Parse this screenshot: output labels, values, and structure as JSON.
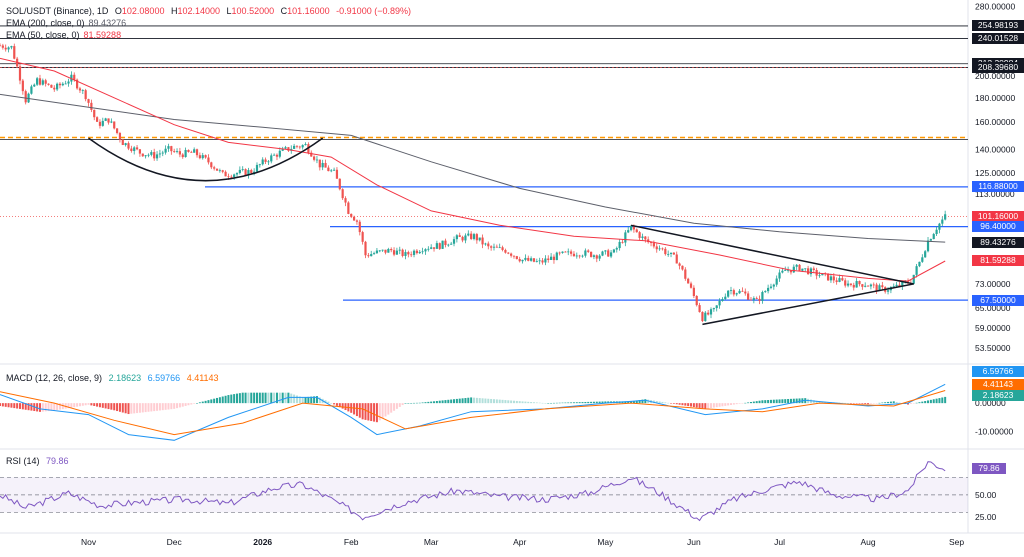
{
  "header": {
    "symbol": "SOL/USDT (Binance), 1D",
    "open_label": "O",
    "open": "102.08000",
    "high_label": "H",
    "high": "102.14000",
    "low_label": "L",
    "low": "100.52000",
    "close_label": "C",
    "close": "101.16000",
    "change": "-0.91000 (−0.89%)",
    "ema200_label": "EMA (200, close, 0)",
    "ema200_value": "89.43276",
    "ema50_label": "EMA (50, close, 0)",
    "ema50_value": "81.59288"
  },
  "macd_header": {
    "label": "MACD (12, 26, close, 9)",
    "v1": "2.18623",
    "v2": "6.59766",
    "v3": "4.41143"
  },
  "rsi_header": {
    "label": "RSI (14)",
    "value": "79.86"
  },
  "colors": {
    "up": "#26a69a",
    "down": "#ef5350",
    "ema200": "#5d606b",
    "ema50": "#f23645",
    "level": "#2962ff",
    "orange": "#ff9800",
    "macd": "#2196f3",
    "signal": "#ff6d00",
    "rsi": "#7e57c2"
  },
  "price_axis": {
    "ticks": [
      "280.00000",
      "240.00000",
      "200.00000",
      "180.00000",
      "160.00000",
      "140.00000",
      "125.00000",
      "113.00000",
      "73.00000",
      "65.00000",
      "59.00000",
      "53.50000"
    ]
  },
  "macd_axis": {
    "ticks": [
      "0.00000",
      "-10.00000"
    ]
  },
  "rsi_axis": {
    "ticks": [
      "50.00",
      "25.00"
    ]
  },
  "time_axis": {
    "labels": [
      "Nov",
      "Dec",
      "2026",
      "Feb",
      "Mar",
      "Apr",
      "May",
      "Jun",
      "Jul",
      "Aug",
      "Sep"
    ]
  },
  "price_tags": [
    {
      "value": 254.98193,
      "text": "254.98193",
      "bg": "#131722"
    },
    {
      "value": 240.01528,
      "text": "240.01528",
      "bg": "#131722"
    },
    {
      "value": 212.30984,
      "text": "212.30984",
      "bg": "#131722"
    },
    {
      "value": 208.3968,
      "text": "208.39680",
      "bg": "#131722"
    },
    {
      "value": 116.88,
      "text": "116.88000",
      "bg": "#2962ff"
    },
    {
      "value": 101.16,
      "text": "101.16000",
      "bg": "#f23645"
    },
    {
      "value": 96.4,
      "text": "96.40000",
      "bg": "#2962ff"
    },
    {
      "value": 89.43276,
      "text": "89.43276",
      "bg": "#131722"
    },
    {
      "value": 81.59288,
      "text": "81.59288",
      "bg": "#f23645"
    },
    {
      "value": 67.5,
      "text": "67.50000",
      "bg": "#2962ff"
    }
  ],
  "macd_tags": [
    {
      "text": "6.59766",
      "bg": "#2196f3"
    },
    {
      "text": "4.41143",
      "bg": "#ff6d00"
    },
    {
      "text": "2.18623",
      "bg": "#26a69a"
    }
  ],
  "rsi_tag": {
    "text": "79.86",
    "bg": "#7e57c2"
  },
  "chart_data": {
    "type": "line",
    "title": "SOL/USDT (Binance), 1D",
    "x_start": "2025-10-01",
    "x_end": "2026-09-05",
    "close_series": [
      [
        "2025-10-01",
        232
      ],
      [
        "2025-10-05",
        230
      ],
      [
        "2025-10-10",
        178
      ],
      [
        "2025-10-14",
        196
      ],
      [
        "2025-10-20",
        188
      ],
      [
        "2025-10-26",
        198
      ],
      [
        "2025-10-31",
        182
      ],
      [
        "2025-11-04",
        158
      ],
      [
        "2025-11-08",
        162
      ],
      [
        "2025-11-13",
        145
      ],
      [
        "2025-11-19",
        138
      ],
      [
        "2025-11-24",
        136
      ],
      [
        "2025-11-29",
        140
      ],
      [
        "2025-12-03",
        137
      ],
      [
        "2025-12-08",
        138
      ],
      [
        "2025-12-13",
        132
      ],
      [
        "2025-12-18",
        124
      ],
      [
        "2025-12-23",
        125
      ],
      [
        "2025-12-28",
        126
      ],
      [
        "2026-01-03",
        134
      ],
      [
        "2026-01-08",
        139
      ],
      [
        "2026-01-12",
        142
      ],
      [
        "2026-01-16",
        143
      ],
      [
        "2026-01-21",
        130
      ],
      [
        "2026-01-26",
        125
      ],
      [
        "2026-01-31",
        104
      ],
      [
        "2026-02-03",
        99
      ],
      [
        "2026-02-06",
        84
      ],
      [
        "2026-02-10",
        85
      ],
      [
        "2026-02-15",
        86
      ],
      [
        "2026-02-20",
        84
      ],
      [
        "2026-02-26",
        87
      ],
      [
        "2026-03-04",
        88
      ],
      [
        "2026-03-10",
        91
      ],
      [
        "2026-03-16",
        92
      ],
      [
        "2026-03-21",
        87
      ],
      [
        "2026-03-27",
        86
      ],
      [
        "2026-04-02",
        82
      ],
      [
        "2026-04-08",
        81
      ],
      [
        "2026-04-15",
        84
      ],
      [
        "2026-04-22",
        85
      ],
      [
        "2026-04-28",
        84
      ],
      [
        "2026-05-04",
        85
      ],
      [
        "2026-05-10",
        96
      ],
      [
        "2026-05-15",
        90
      ],
      [
        "2026-05-20",
        87
      ],
      [
        "2026-05-26",
        82
      ],
      [
        "2026-05-31",
        71
      ],
      [
        "2026-06-04",
        62
      ],
      [
        "2026-06-08",
        64
      ],
      [
        "2026-06-13",
        71
      ],
      [
        "2026-06-18",
        70
      ],
      [
        "2026-06-23",
        67
      ],
      [
        "2026-06-28",
        73
      ],
      [
        "2026-07-03",
        78
      ],
      [
        "2026-07-08",
        79
      ],
      [
        "2026-07-13",
        77
      ],
      [
        "2026-07-19",
        75
      ],
      [
        "2026-07-25",
        73
      ],
      [
        "2026-07-31",
        73
      ],
      [
        "2026-08-06",
        71
      ],
      [
        "2026-08-11",
        72
      ],
      [
        "2026-08-16",
        74
      ],
      [
        "2026-08-19",
        81
      ],
      [
        "2026-08-22",
        90
      ],
      [
        "2026-08-25",
        96
      ],
      [
        "2026-08-28",
        101.16
      ]
    ],
    "ema50": [
      [
        "2025-10-01",
        218
      ],
      [
        "2025-10-20",
        205
      ],
      [
        "2025-11-10",
        180
      ],
      [
        "2025-12-01",
        158
      ],
      [
        "2025-12-20",
        145
      ],
      [
        "2026-01-10",
        140
      ],
      [
        "2026-01-25",
        135
      ],
      [
        "2026-02-10",
        118
      ],
      [
        "2026-03-01",
        104
      ],
      [
        "2026-03-25",
        97
      ],
      [
        "2026-04-20",
        92
      ],
      [
        "2026-05-15",
        90
      ],
      [
        "2026-06-10",
        84
      ],
      [
        "2026-07-05",
        78
      ],
      [
        "2026-08-01",
        75
      ],
      [
        "2026-08-15",
        74
      ],
      [
        "2026-08-28",
        81.59288
      ]
    ],
    "ema200": [
      [
        "2025-10-01",
        183
      ],
      [
        "2025-11-01",
        172
      ],
      [
        "2025-12-01",
        162
      ],
      [
        "2026-01-01",
        156
      ],
      [
        "2026-02-01",
        150
      ],
      [
        "2026-03-01",
        132
      ],
      [
        "2026-04-01",
        116
      ],
      [
        "2026-05-01",
        106
      ],
      [
        "2026-06-01",
        98
      ],
      [
        "2026-07-01",
        94
      ],
      [
        "2026-08-01",
        91
      ],
      [
        "2026-08-28",
        89.43276
      ]
    ],
    "levels": [
      254.98193,
      240.01528,
      212.30984,
      208.3968,
      148.5,
      116.88,
      96.4,
      67.5
    ],
    "macd": [
      [
        "2025-10-01",
        3
      ],
      [
        "2025-10-15",
        -2
      ],
      [
        "2025-11-01",
        -4
      ],
      [
        "2025-11-15",
        -11
      ],
      [
        "2025-12-01",
        -13
      ],
      [
        "2025-12-20",
        -5
      ],
      [
        "2026-01-10",
        2
      ],
      [
        "2026-01-20",
        2
      ],
      [
        "2026-02-01",
        -5
      ],
      [
        "2026-02-10",
        -11
      ],
      [
        "2026-02-25",
        -8
      ],
      [
        "2026-03-15",
        -3
      ],
      [
        "2026-04-10",
        -2
      ],
      [
        "2026-05-01",
        0
      ],
      [
        "2026-05-15",
        1
      ],
      [
        "2026-06-05",
        -4
      ],
      [
        "2026-06-25",
        -2
      ],
      [
        "2026-07-10",
        1
      ],
      [
        "2026-08-01",
        -1
      ],
      [
        "2026-08-15",
        0
      ],
      [
        "2026-08-28",
        6.59766
      ]
    ],
    "signal": [
      [
        "2025-10-01",
        4
      ],
      [
        "2025-10-20",
        0
      ],
      [
        "2025-11-10",
        -6
      ],
      [
        "2025-12-01",
        -11
      ],
      [
        "2025-12-25",
        -7
      ],
      [
        "2026-01-15",
        0
      ],
      [
        "2026-02-05",
        -2
      ],
      [
        "2026-02-20",
        -9
      ],
      [
        "2026-03-15",
        -5
      ],
      [
        "2026-04-10",
        -2
      ],
      [
        "2026-05-10",
        0
      ],
      [
        "2026-06-05",
        -2
      ],
      [
        "2026-06-25",
        -3
      ],
      [
        "2026-07-15",
        0
      ],
      [
        "2026-08-10",
        -1
      ],
      [
        "2026-08-28",
        4.41143
      ]
    ],
    "rsi": [
      [
        "2025-10-01",
        50
      ],
      [
        "2025-10-10",
        35
      ],
      [
        "2025-10-25",
        52
      ],
      [
        "2025-11-05",
        38
      ],
      [
        "2025-11-20",
        42
      ],
      [
        "2025-12-05",
        45
      ],
      [
        "2025-12-20",
        40
      ],
      [
        "2026-01-05",
        58
      ],
      [
        "2026-01-15",
        62
      ],
      [
        "2026-01-25",
        45
      ],
      [
        "2026-02-05",
        25
      ],
      [
        "2026-02-20",
        42
      ],
      [
        "2026-03-10",
        55
      ],
      [
        "2026-03-25",
        48
      ],
      [
        "2026-04-10",
        45
      ],
      [
        "2026-04-25",
        52
      ],
      [
        "2026-05-10",
        70
      ],
      [
        "2026-05-20",
        52
      ],
      [
        "2026-06-03",
        22
      ],
      [
        "2026-06-15",
        45
      ],
      [
        "2026-06-28",
        58
      ],
      [
        "2026-07-08",
        65
      ],
      [
        "2026-07-20",
        50
      ],
      [
        "2026-08-05",
        45
      ],
      [
        "2026-08-15",
        55
      ],
      [
        "2026-08-22",
        88
      ],
      [
        "2026-08-28",
        79.86
      ]
    ],
    "price_range": [
      50,
      285
    ],
    "macd_range": [
      -15,
      13
    ],
    "rsi_range": [
      10,
      100
    ]
  }
}
